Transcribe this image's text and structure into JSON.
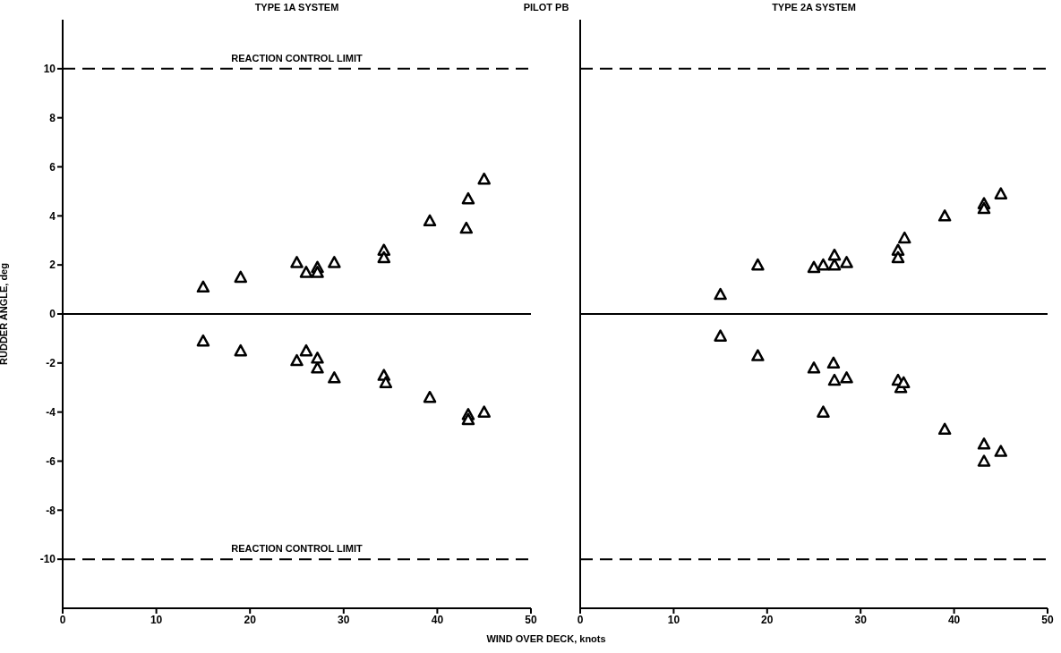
{
  "chart_data": [
    {
      "type": "scatter",
      "title": "TYPE 1A SYSTEM",
      "subtitle": "PILOT PB",
      "xlabel": "WIND OVER DECK, knots",
      "ylabel": "RUDDER ANGLE, deg",
      "xlim": [
        0,
        50
      ],
      "xticks": [
        0,
        10,
        20,
        30,
        40,
        50
      ],
      "ylim": [
        -12,
        12
      ],
      "yticks": [
        -10,
        -8,
        -6,
        -4,
        -2,
        0,
        2,
        4,
        6,
        8,
        10
      ],
      "grid": false,
      "marker": "triangle",
      "ref_lines": [
        {
          "axis": "y",
          "value": 10,
          "label": "REACTION CONTROL LIMIT",
          "line_style": "dashed",
          "color": "#000000"
        },
        {
          "axis": "y",
          "value": -10,
          "label": "REACTION CONTROL LIMIT",
          "line_style": "dashed",
          "color": "#000000"
        },
        {
          "axis": "y",
          "value": 0,
          "line_style": "solid",
          "color": "#000000"
        }
      ],
      "series": [
        {
          "color": "#000000",
          "x": [
            15,
            19,
            25,
            26,
            27.2,
            27.2,
            29,
            34.3,
            34.3,
            39.2,
            43.3,
            43.1,
            45,
            15,
            19,
            25,
            26,
            27.2,
            27.2,
            29,
            34.3,
            34.5,
            39.2,
            43.3,
            43.3,
            45
          ],
          "values": [
            1.1,
            1.5,
            2.1,
            1.7,
            1.9,
            1.7,
            2.1,
            2.6,
            2.3,
            3.8,
            4.7,
            3.5,
            5.5,
            -1.1,
            -1.5,
            -1.9,
            -1.5,
            -1.8,
            -2.2,
            -2.6,
            -2.5,
            -2.8,
            -3.4,
            -4.1,
            -4.3,
            -4.0
          ]
        }
      ]
    },
    {
      "type": "scatter",
      "title": "TYPE 2A SYSTEM",
      "xlim": [
        0,
        50
      ],
      "xticks": [
        0,
        10,
        20,
        30,
        40,
        50
      ],
      "ylim": [
        -12,
        12
      ],
      "yticks": [
        -10,
        -8,
        -6,
        -4,
        -2,
        0,
        2,
        4,
        6,
        8,
        10
      ],
      "grid": false,
      "marker": "triangle",
      "tick_labels": "x",
      "ref_lines": [
        {
          "axis": "y",
          "value": 10,
          "line_style": "dashed",
          "color": "#000000"
        },
        {
          "axis": "y",
          "value": -10,
          "line_style": "dashed",
          "color": "#000000"
        },
        {
          "axis": "y",
          "value": 0,
          "line_style": "solid",
          "color": "#000000"
        }
      ],
      "series": [
        {
          "color": "#000000",
          "x": [
            15,
            19,
            25,
            26,
            27.2,
            27.2,
            28.5,
            34,
            34,
            34.7,
            39,
            43.2,
            43.2,
            45,
            15,
            19,
            25,
            27.1,
            27.2,
            28.5,
            26,
            34,
            34.3,
            34.6,
            39,
            43.2,
            43.2,
            45
          ],
          "values": [
            0.8,
            2.0,
            1.9,
            2.0,
            2.4,
            2.0,
            2.1,
            2.6,
            2.3,
            3.1,
            4.0,
            4.5,
            4.3,
            4.9,
            -0.9,
            -1.7,
            -2.2,
            -2.0,
            -2.7,
            -2.6,
            -4.0,
            -2.7,
            -3.0,
            -2.8,
            -4.7,
            -5.3,
            -6.0,
            -5.6
          ]
        }
      ]
    }
  ]
}
